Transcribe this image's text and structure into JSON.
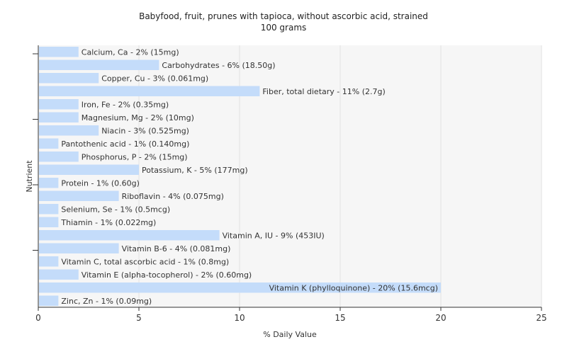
{
  "chart_data": {
    "type": "bar",
    "orientation": "horizontal",
    "title": "Babyfood, fruit, prunes with tapioca, without ascorbic acid, strained",
    "subtitle": "100 grams",
    "xlabel": "% Daily Value",
    "ylabel": "Nutrient",
    "xlim": [
      0,
      25
    ],
    "xticks": [
      0,
      5,
      10,
      15,
      20,
      25
    ],
    "grid": true,
    "bar_color": "#c4dcfa",
    "background": "#f6f6f6",
    "categories": [
      "Calcium, Ca",
      "Carbohydrates",
      "Copper, Cu",
      "Fiber, total dietary",
      "Iron, Fe",
      "Magnesium, Mg",
      "Niacin",
      "Pantothenic acid",
      "Phosphorus, P",
      "Potassium, K",
      "Protein",
      "Riboflavin",
      "Selenium, Se",
      "Thiamin",
      "Vitamin A, IU",
      "Vitamin B-6",
      "Vitamin C, total ascorbic acid",
      "Vitamin E (alpha-tocopherol)",
      "Vitamin K (phylloquinone)",
      "Zinc, Zn"
    ],
    "values": [
      2,
      6,
      3,
      11,
      2,
      2,
      3,
      1,
      2,
      5,
      1,
      4,
      1,
      1,
      9,
      4,
      1,
      2,
      20,
      1
    ],
    "labels": [
      "Calcium, Ca - 2% (15mg)",
      "Carbohydrates - 6% (18.50g)",
      "Copper, Cu - 3% (0.061mg)",
      "Fiber, total dietary - 11% (2.7g)",
      "Iron, Fe - 2% (0.35mg)",
      "Magnesium, Mg - 2% (10mg)",
      "Niacin - 3% (0.525mg)",
      "Pantothenic acid - 1% (0.140mg)",
      "Phosphorus, P - 2% (15mg)",
      "Potassium, K - 5% (177mg)",
      "Protein - 1% (0.60g)",
      "Riboflavin - 4% (0.075mg)",
      "Selenium, Se - 1% (0.5mcg)",
      "Thiamin - 1% (0.022mg)",
      "Vitamin A, IU - 9% (453IU)",
      "Vitamin B-6 - 4% (0.081mg)",
      "Vitamin C, total ascorbic acid - 1% (0.8mg)",
      "Vitamin E (alpha-tocopherol) - 2% (0.60mg)",
      "Vitamin K (phylloquinone) - 20% (15.6mcg)",
      "Zinc, Zn - 1% (0.09mg)"
    ]
  }
}
